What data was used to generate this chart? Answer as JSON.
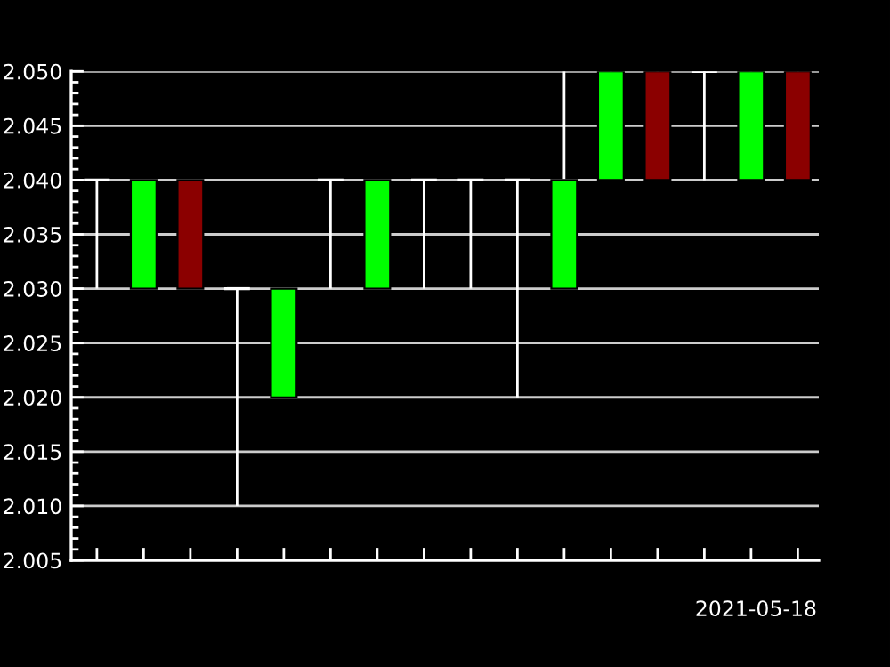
{
  "chart_data": {
    "type": "candlestick",
    "categories": [
      null,
      null,
      null,
      null,
      null,
      null,
      null,
      null,
      null,
      null,
      null,
      null,
      null,
      null,
      null,
      null
    ],
    "ohlc": [
      [
        2.04,
        2.04,
        2.03,
        2.04
      ],
      [
        2.03,
        2.04,
        2.03,
        2.04
      ],
      [
        2.04,
        2.04,
        2.03,
        2.03
      ],
      [
        2.03,
        2.03,
        2.01,
        2.03
      ],
      [
        2.02,
        2.03,
        2.02,
        2.03
      ],
      [
        2.04,
        2.04,
        2.03,
        2.04
      ],
      [
        2.03,
        2.04,
        2.03,
        2.04
      ],
      [
        2.04,
        2.04,
        2.03,
        2.04
      ],
      [
        2.04,
        2.04,
        2.03,
        2.04
      ],
      [
        2.04,
        2.04,
        2.02,
        2.04
      ],
      [
        2.03,
        2.05,
        2.03,
        2.04
      ],
      [
        2.04,
        2.05,
        2.04,
        2.05
      ],
      [
        2.05,
        2.05,
        2.04,
        2.04
      ],
      [
        2.05,
        2.05,
        2.04,
        2.05
      ],
      [
        2.04,
        2.05,
        2.04,
        2.05
      ],
      [
        2.05,
        2.05,
        2.04,
        2.04
      ]
    ],
    "colors": [
      "#ffffff",
      "#00ff00",
      "#8b0000",
      "#ffffff",
      "#00ff00",
      "#ffffff",
      "#00ff00",
      "#ffffff",
      "#ffffff",
      "#ffffff",
      "#00ff00",
      "#00ff00",
      "#8b0000",
      "#ffffff",
      "#00ff00",
      "#8b0000"
    ],
    "ylim": [
      2.005,
      2.05
    ],
    "yticks": [
      {
        "value": 2.005,
        "label": "2.005"
      },
      {
        "value": 2.01,
        "label": "2.010"
      },
      {
        "value": 2.015,
        "label": "2.015"
      },
      {
        "value": 2.02,
        "label": "2.020"
      },
      {
        "value": 2.025,
        "label": "2.025"
      },
      {
        "value": 2.03,
        "label": "2.030"
      },
      {
        "value": 2.035,
        "label": "2.035"
      },
      {
        "value": 2.04,
        "label": "2.040"
      },
      {
        "value": 2.045,
        "label": "2.045"
      },
      {
        "value": 2.05,
        "label": "2.050"
      }
    ],
    "grid": "y",
    "tick_labels": "y",
    "annotations": [
      "2021-05-18"
    ]
  }
}
